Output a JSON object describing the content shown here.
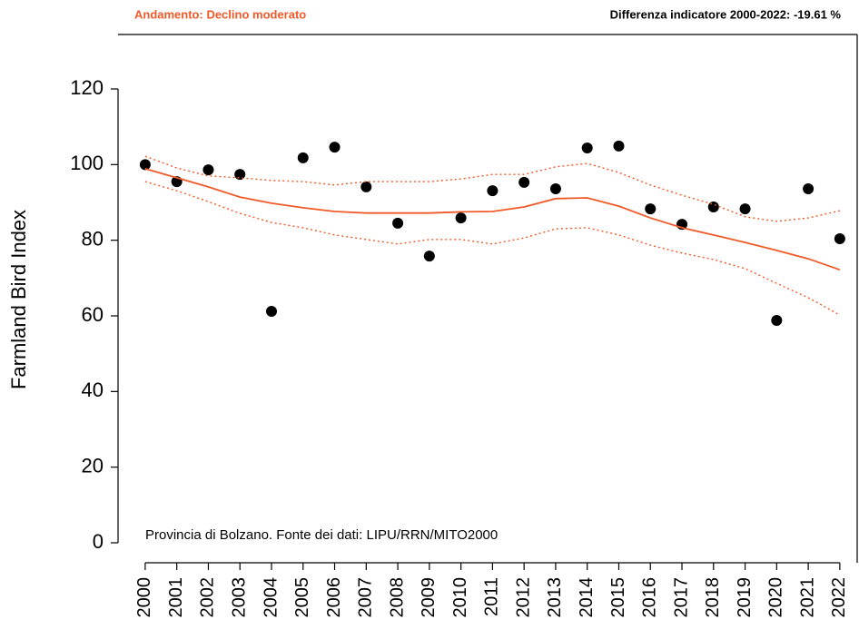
{
  "chart_data": {
    "type": "scatter",
    "title": "Andamento:  Declino moderato",
    "subtitle": "Differenza indicatore 2000-2022: -19.61 %",
    "annotation": "Provincia di Bolzano. Fonte dei dati: LIPU/RRN/MITO2000",
    "y_label": "Farmland Bird Index",
    "title_color": "#f05a28",
    "x": [
      2000,
      2001,
      2002,
      2003,
      2004,
      2005,
      2006,
      2007,
      2008,
      2009,
      2010,
      2011,
      2012,
      2013,
      2014,
      2015,
      2016,
      2017,
      2018,
      2019,
      2020,
      2021,
      2022
    ],
    "xticks": [
      2000,
      2001,
      2002,
      2003,
      2004,
      2005,
      2006,
      2007,
      2008,
      2009,
      2010,
      2011,
      2012,
      2013,
      2014,
      2015,
      2016,
      2017,
      2018,
      2019,
      2020,
      2021,
      2022
    ],
    "xlim": [
      1999.14,
      2022.55
    ],
    "ylim": [
      -7.2,
      134.4
    ],
    "yticks": [
      0,
      20,
      40,
      60,
      80,
      100,
      120
    ],
    "series": [
      {
        "kind": "points",
        "color": "#000000",
        "values": [
          100,
          95.5,
          98.6,
          97.4,
          61.2,
          101.8,
          104.6,
          94.1,
          84.5,
          75.8,
          85.9,
          93.1,
          95.3,
          93.6,
          104.4,
          104.9,
          88.3,
          84.2,
          88.8,
          88.3,
          58.8,
          93.6,
          80.4
        ]
      },
      {
        "kind": "solid",
        "color": "#f05a28",
        "values": [
          98.9,
          96.5,
          94.1,
          91.4,
          89.8,
          88.6,
          87.6,
          87.2,
          87.2,
          87.2,
          87.5,
          87.6,
          88.8,
          91,
          91.2,
          89,
          85.9,
          83.3,
          81.4,
          79.4,
          77.3,
          75.1,
          72.2
        ]
      },
      {
        "kind": "dotted",
        "color": "#f05a28",
        "values": [
          102.2,
          99.1,
          97,
          96.5,
          95.8,
          95.5,
          94.6,
          95.5,
          95.5,
          95.5,
          96.2,
          97.4,
          97.4,
          99.4,
          100.3,
          97.9,
          94.6,
          91.9,
          89.5,
          86.2,
          85,
          85.9,
          87.8
        ]
      },
      {
        "kind": "dotted",
        "color": "#f05a28",
        "values": [
          95.5,
          93.1,
          90.2,
          87.1,
          84.7,
          83.3,
          81.4,
          80.2,
          79,
          80.2,
          80.2,
          79,
          80.6,
          83,
          83.3,
          81.4,
          78.7,
          76.6,
          74.9,
          72.5,
          68.6,
          64.8,
          60.2
        ]
      }
    ]
  }
}
